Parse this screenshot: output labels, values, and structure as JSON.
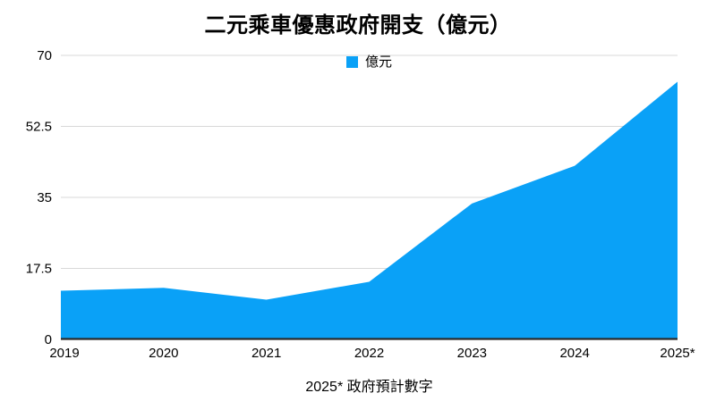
{
  "title": "二元乘車優惠政府開支（億元）",
  "legend": {
    "label": "億元"
  },
  "footnote": "2025* 政府預計數字",
  "chart_data": {
    "type": "area",
    "title": "二元乘車優惠政府開支（億元）",
    "categories": [
      "2019",
      "2020",
      "2021",
      "2022",
      "2023",
      "2024",
      "2025*"
    ],
    "series": [
      {
        "name": "億元",
        "values": [
          12,
          12.7,
          9.8,
          14.2,
          33.5,
          42.8,
          63.5
        ]
      }
    ],
    "xlabel": "",
    "ylabel": "",
    "ylim": [
      0,
      70
    ],
    "yticks": [
      0,
      17.5,
      35,
      52.5,
      70
    ],
    "grid": true,
    "legend_position": "top-center",
    "colors": {
      "area": "#0aa1f7",
      "gridline": "#d8d8d8",
      "axis_line": "#2b2b2b",
      "text": "#000000"
    }
  }
}
